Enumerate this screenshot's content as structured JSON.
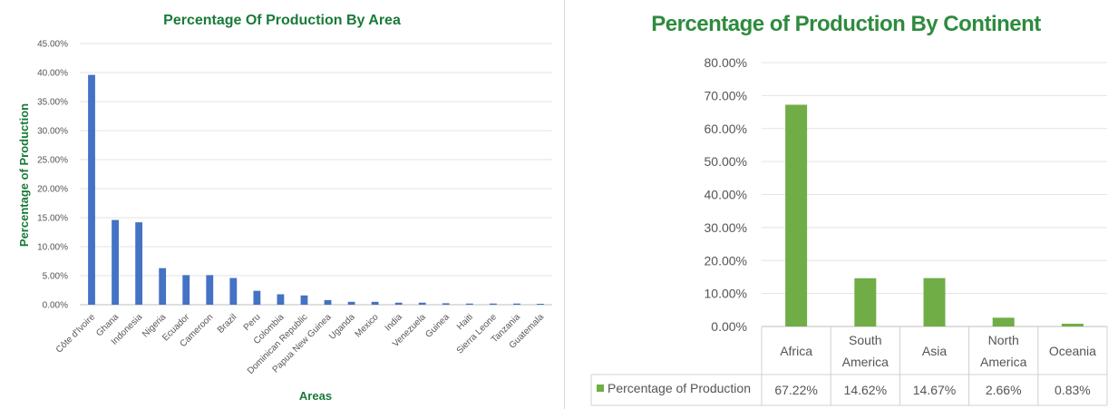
{
  "chart_data": [
    {
      "type": "bar",
      "title": "Percentage Of Production By Area",
      "xlabel": "Areas",
      "ylabel": "Percentage of Production",
      "ylim": [
        0,
        45
      ],
      "yticks": [
        "0.00%",
        "5.00%",
        "10.00%",
        "15.00%",
        "20.00%",
        "25.00%",
        "30.00%",
        "35.00%",
        "40.00%",
        "45.00%"
      ],
      "grid": true,
      "color": "#4472c4",
      "categories": [
        "Côte d'Ivoire",
        "Ghana",
        "Indonesia",
        "Nigeria",
        "Ecuador",
        "Cameroon",
        "Brazil",
        "Peru",
        "Colombia",
        "Dominican Republic",
        "Papua New Guinea",
        "Uganda",
        "Mexico",
        "India",
        "Venezuela",
        "Guinea",
        "Haiti",
        "Sierra Leone",
        "Tanzania",
        "Guatemala"
      ],
      "values": [
        39.6,
        14.6,
        14.2,
        6.3,
        5.1,
        5.1,
        4.6,
        2.4,
        1.8,
        1.6,
        0.8,
        0.5,
        0.5,
        0.35,
        0.35,
        0.25,
        0.2,
        0.2,
        0.2,
        0.15
      ]
    },
    {
      "type": "bar",
      "title": "Percentage of Production By Continent",
      "ylim": [
        0,
        80
      ],
      "yticks": [
        "0.00%",
        "10.00%",
        "20.00%",
        "30.00%",
        "40.00%",
        "50.00%",
        "60.00%",
        "70.00%",
        "80.00%"
      ],
      "grid": true,
      "color": "#70ad47",
      "categories": [
        "Africa",
        "South America",
        "Asia",
        "North America",
        "Oceania"
      ],
      "series": [
        {
          "name": "Percentage of Production",
          "values": [
            67.22,
            14.62,
            14.67,
            2.66,
            0.83
          ]
        }
      ],
      "data_table": [
        "67.22%",
        "14.62%",
        "14.67%",
        "2.66%",
        "0.83%"
      ]
    }
  ]
}
